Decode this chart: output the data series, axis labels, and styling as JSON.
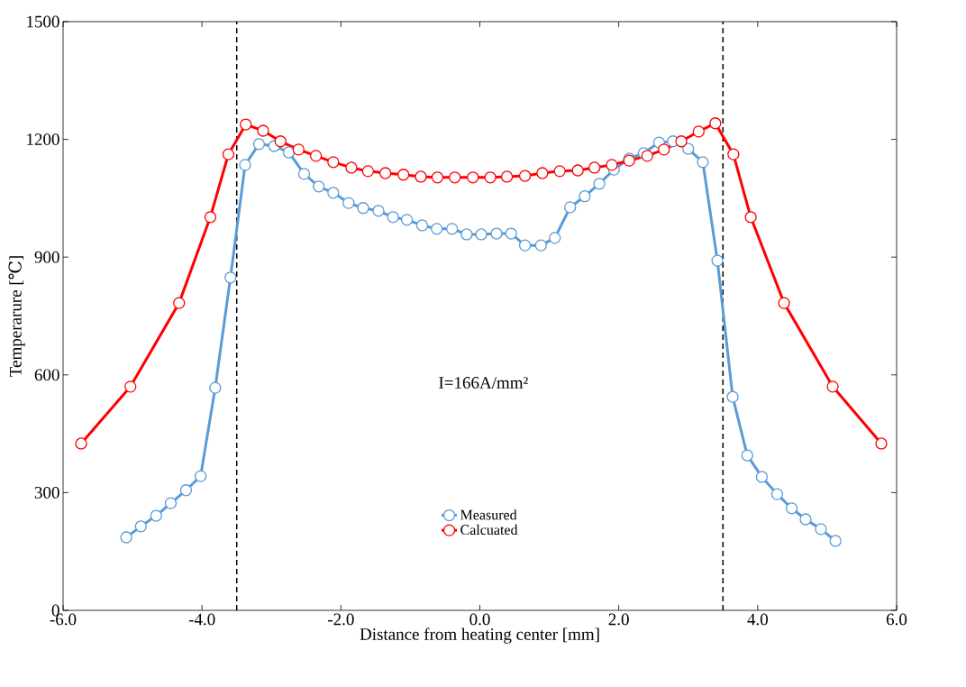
{
  "chart_data": {
    "type": "line",
    "xlabel": "Distance from heating center [mm]",
    "ylabel": "Temperarure [℃]",
    "xlim": [
      -6,
      6
    ],
    "ylim": [
      0,
      1500
    ],
    "xticks": [
      {
        "value": -6,
        "label": "-6.0"
      },
      {
        "value": -4,
        "label": "-4.0"
      },
      {
        "value": -2,
        "label": "-2.0"
      },
      {
        "value": 0,
        "label": "0.0"
      },
      {
        "value": 2,
        "label": "2.0"
      },
      {
        "value": 4,
        "label": "4.0"
      },
      {
        "value": 6,
        "label": "6.0"
      }
    ],
    "yticks": [
      0,
      300,
      600,
      900,
      1200,
      1500
    ],
    "grid": false,
    "legend": "bottom",
    "marker": "circle",
    "line_style": "solid",
    "annotations": [
      "I=166A/mm²"
    ],
    "ref_lines": [
      {
        "axis": "x",
        "value": -3.5,
        "color": "#000000",
        "line_style": "dashed"
      },
      {
        "axis": "x",
        "value": 3.5,
        "color": "#000000",
        "line_style": "dashed"
      }
    ],
    "series": [
      {
        "name": "Measured",
        "color": "#5b9bd5",
        "x": [
          -5.09,
          -4.88,
          -4.66,
          -4.45,
          -4.23,
          -4.02,
          -3.81,
          -3.59,
          -3.38,
          -3.18,
          -2.96,
          -2.75,
          -2.53,
          -2.32,
          -2.11,
          -1.89,
          -1.68,
          -1.46,
          -1.25,
          -1.05,
          -0.83,
          -0.62,
          -0.4,
          -0.19,
          0.02,
          0.24,
          0.45,
          0.65,
          0.88,
          1.08,
          1.3,
          1.51,
          1.72,
          1.93,
          2.15,
          2.36,
          2.58,
          2.78,
          3.0,
          3.21,
          3.42,
          3.64,
          3.85,
          4.06,
          4.28,
          4.49,
          4.69,
          4.91,
          5.12
        ],
        "values": [
          186,
          214,
          241,
          273,
          306,
          342,
          567,
          848,
          1135,
          1188,
          1183,
          1167,
          1112,
          1080,
          1064,
          1038,
          1025,
          1018,
          1002,
          995,
          981,
          972,
          972,
          958,
          958,
          960,
          960,
          930,
          930,
          949,
          1027,
          1055,
          1087,
          1123,
          1151,
          1165,
          1192,
          1195,
          1176,
          1142,
          891,
          544,
          395,
          340,
          296,
          260,
          232,
          207,
          177
        ]
      },
      {
        "name": "Calcuated",
        "color": "#ff0000",
        "x": [
          -5.74,
          -5.03,
          -4.33,
          -3.88,
          -3.62,
          -3.37,
          -3.12,
          -2.87,
          -2.61,
          -2.36,
          -2.11,
          -1.85,
          -1.61,
          -1.36,
          -1.1,
          -0.85,
          -0.61,
          -0.36,
          -0.1,
          0.15,
          0.39,
          0.65,
          0.9,
          1.15,
          1.41,
          1.65,
          1.9,
          2.15,
          2.41,
          2.65,
          2.9,
          3.15,
          3.39,
          3.65,
          3.9,
          4.38,
          5.08,
          5.78
        ],
        "values": [
          425,
          570,
          783,
          1002,
          1162,
          1238,
          1222,
          1195,
          1174,
          1158,
          1142,
          1128,
          1119,
          1114,
          1110,
          1105,
          1103,
          1103,
          1103,
          1103,
          1105,
          1107,
          1114,
          1119,
          1121,
          1128,
          1135,
          1146,
          1158,
          1174,
          1195,
          1220,
          1241,
          1162,
          1002,
          783,
          570,
          425
        ]
      }
    ]
  }
}
